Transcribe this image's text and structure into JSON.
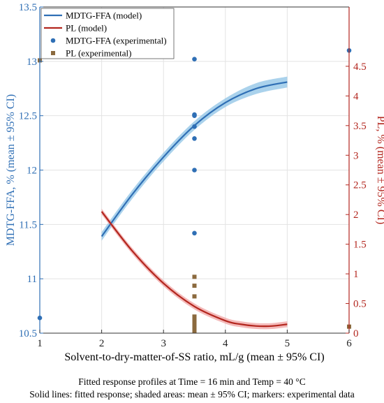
{
  "chart_data": {
    "type": "line",
    "x_axis": {
      "label": "Solvent-to-dry-matter-of-SS ratio, mL/g (mean ± 95% CI)",
      "range": [
        1,
        6
      ],
      "ticks": [
        "1",
        "2",
        "3",
        "4",
        "5",
        "6"
      ]
    },
    "y_left": {
      "label": "MDTG-FFA, % (mean ± 95% CI)",
      "range": [
        10.5,
        13.5
      ],
      "ticks": [
        "10.5",
        "11",
        "11.5",
        "12",
        "12.5",
        "13",
        "13.5"
      ],
      "color": "#2f6fb5"
    },
    "y_right": {
      "label": "PL, % (mean ± 95% CI)",
      "range": [
        0,
        5.5
      ],
      "ticks": [
        "0",
        "0.5",
        "1",
        "1.5",
        "2",
        "2.5",
        "3",
        "3.5",
        "4",
        "4.5"
      ],
      "color": "#b3261e"
    },
    "grid": true,
    "legend_position": "top-left",
    "series": [
      {
        "name": "MDTG-FFA (model)",
        "kind": "line",
        "axis": "left",
        "color": "#2f6fb5",
        "band_color": "#8ec3e6",
        "x": [
          2.0,
          2.5,
          3.0,
          3.5,
          4.0,
          4.5,
          5.0
        ],
        "y": [
          11.39,
          11.78,
          12.12,
          12.41,
          12.62,
          12.75,
          12.81
        ],
        "ci": [
          0.04,
          0.04,
          0.04,
          0.04,
          0.04,
          0.05,
          0.05
        ]
      },
      {
        "name": "PL (model)",
        "kind": "line",
        "axis": "right",
        "color": "#b3261e",
        "band_color": "#f0a3a3",
        "x": [
          2.0,
          2.5,
          3.0,
          3.5,
          4.0,
          4.25,
          4.5,
          4.75,
          5.0
        ],
        "y": [
          2.05,
          1.38,
          0.84,
          0.45,
          0.21,
          0.15,
          0.12,
          0.12,
          0.15
        ],
        "ci": [
          0.05,
          0.05,
          0.05,
          0.05,
          0.05,
          0.05,
          0.05,
          0.05,
          0.05
        ]
      },
      {
        "name": "MDTG-FFA (experimental)",
        "kind": "scatter",
        "axis": "left",
        "color": "#2f6fb5",
        "x": [
          1.0,
          3.5,
          3.5,
          3.5,
          3.5,
          3.5,
          3.5,
          3.5,
          6.0
        ],
        "y": [
          10.64,
          11.42,
          12.0,
          12.29,
          12.4,
          12.5,
          12.51,
          13.02,
          13.1
        ]
      },
      {
        "name": "PL (experimental)",
        "kind": "scatter",
        "axis": "right",
        "color": "#8b6a3e",
        "x": [
          1.0,
          3.5,
          3.5,
          3.5,
          3.5,
          3.5,
          3.5,
          3.5,
          3.5,
          3.5,
          6.0
        ],
        "y": [
          4.6,
          0.95,
          0.8,
          0.62,
          0.28,
          0.22,
          0.16,
          0.12,
          0.08,
          0.04,
          0.11
        ]
      }
    ]
  },
  "captions": {
    "line1": "Fitted response profiles at Time = 16 min and Temp = 40 °C",
    "line2": "Solid lines: fitted response; shaded areas: mean ± 95% CI; markers: experimental data"
  }
}
